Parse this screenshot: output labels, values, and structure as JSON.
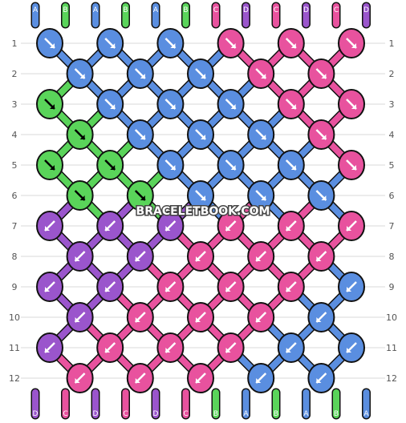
{
  "watermark": "BRACELETBOOK.COM",
  "colors": {
    "A": "#5a8ee0",
    "B": "#5ad45a",
    "C": "#e8529e",
    "D": "#9a55cc"
  },
  "top_strands": [
    "A",
    "B",
    "A",
    "B",
    "A",
    "B",
    "C",
    "D",
    "C",
    "D",
    "C",
    "D"
  ],
  "bottom_strands": [
    "D",
    "C",
    "D",
    "C",
    "D",
    "C",
    "B",
    "A",
    "B",
    "A",
    "B",
    "A"
  ],
  "row_labels": [
    "1",
    "2",
    "3",
    "4",
    "5",
    "6",
    "7",
    "8",
    "9",
    "10",
    "11",
    "12"
  ],
  "knot_rows": [
    [
      {
        "c": "A",
        "d": "dr"
      },
      {
        "c": "A",
        "d": "dr"
      },
      {
        "c": "A",
        "d": "dr"
      },
      {
        "c": "C",
        "d": "dr"
      },
      {
        "c": "C",
        "d": "dr"
      },
      {
        "c": "C",
        "d": "dr"
      }
    ],
    [
      {
        "c": "A",
        "d": "dr"
      },
      {
        "c": "A",
        "d": "dr"
      },
      {
        "c": "A",
        "d": "dr"
      },
      {
        "c": "C",
        "d": "dr"
      },
      {
        "c": "C",
        "d": "dr"
      }
    ],
    [
      {
        "c": "B",
        "d": "dr"
      },
      {
        "c": "A",
        "d": "dr"
      },
      {
        "c": "A",
        "d": "dr"
      },
      {
        "c": "A",
        "d": "dr"
      },
      {
        "c": "C",
        "d": "dr"
      },
      {
        "c": "C",
        "d": "dr"
      }
    ],
    [
      {
        "c": "B",
        "d": "dr"
      },
      {
        "c": "A",
        "d": "dr"
      },
      {
        "c": "A",
        "d": "dr"
      },
      {
        "c": "A",
        "d": "dr"
      },
      {
        "c": "C",
        "d": "dr"
      }
    ],
    [
      {
        "c": "B",
        "d": "dr"
      },
      {
        "c": "B",
        "d": "dr"
      },
      {
        "c": "A",
        "d": "dr"
      },
      {
        "c": "A",
        "d": "dr"
      },
      {
        "c": "A",
        "d": "dr"
      },
      {
        "c": "C",
        "d": "dr"
      }
    ],
    [
      {
        "c": "B",
        "d": "dr"
      },
      {
        "c": "B",
        "d": "dr"
      },
      {
        "c": "A",
        "d": "dr"
      },
      {
        "c": "A",
        "d": "dr"
      },
      {
        "c": "A",
        "d": "dr"
      }
    ],
    [
      {
        "c": "D",
        "d": "dl"
      },
      {
        "c": "D",
        "d": "dl"
      },
      {
        "c": "D",
        "d": "dl"
      },
      {
        "c": "C",
        "d": "dl"
      },
      {
        "c": "C",
        "d": "dl"
      },
      {
        "c": "C",
        "d": "dl"
      }
    ],
    [
      {
        "c": "D",
        "d": "dl"
      },
      {
        "c": "D",
        "d": "dl"
      },
      {
        "c": "C",
        "d": "dl"
      },
      {
        "c": "C",
        "d": "dl"
      },
      {
        "c": "C",
        "d": "dl"
      }
    ],
    [
      {
        "c": "D",
        "d": "dl"
      },
      {
        "c": "D",
        "d": "dl"
      },
      {
        "c": "C",
        "d": "dl"
      },
      {
        "c": "C",
        "d": "dl"
      },
      {
        "c": "C",
        "d": "dl"
      },
      {
        "c": "A",
        "d": "dl"
      }
    ],
    [
      {
        "c": "D",
        "d": "dl"
      },
      {
        "c": "C",
        "d": "dl"
      },
      {
        "c": "C",
        "d": "dl"
      },
      {
        "c": "C",
        "d": "dl"
      },
      {
        "c": "A",
        "d": "dl"
      }
    ],
    [
      {
        "c": "D",
        "d": "dl"
      },
      {
        "c": "C",
        "d": "dl"
      },
      {
        "c": "C",
        "d": "dl"
      },
      {
        "c": "C",
        "d": "dl"
      },
      {
        "c": "A",
        "d": "dl"
      },
      {
        "c": "A",
        "d": "dl"
      }
    ],
    [
      {
        "c": "C",
        "d": "dl"
      },
      {
        "c": "C",
        "d": "dl"
      },
      {
        "c": "C",
        "d": "dl"
      },
      {
        "c": "A",
        "d": "dl"
      },
      {
        "c": "A",
        "d": "dl"
      }
    ]
  ]
}
